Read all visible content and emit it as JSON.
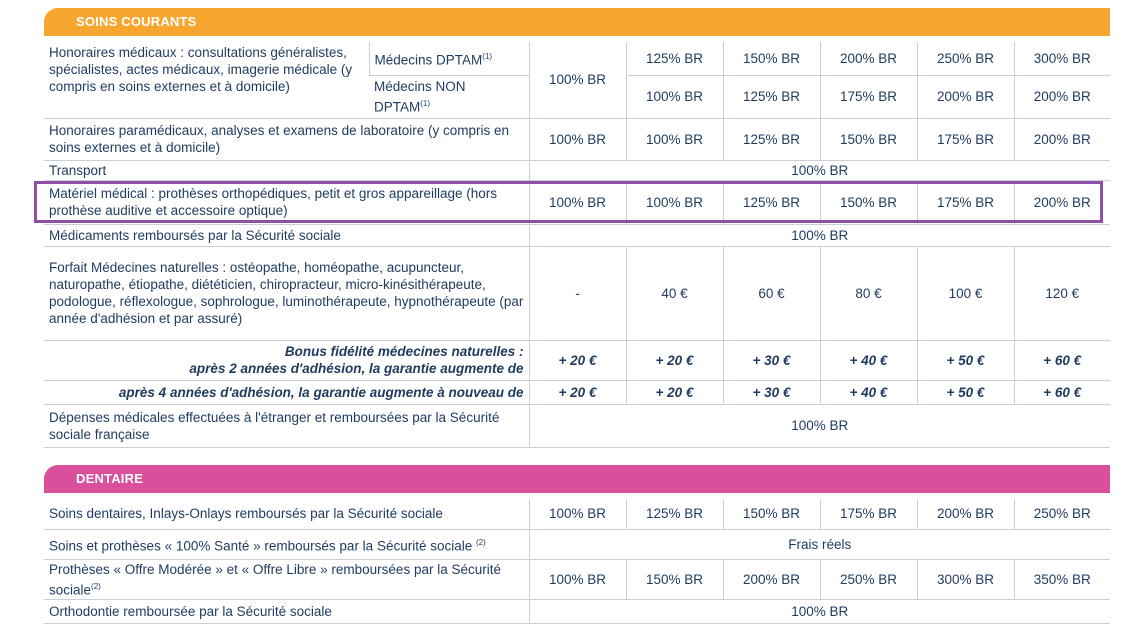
{
  "section1": {
    "title": "SOINS COURANTS",
    "rows": {
      "honoraires_medicaux": {
        "label": "Honoraires médicaux : consultations généralistes, spécialistes, actes médicaux, imagerie médicale (y compris en soins externes et à domicile)",
        "shared": "100% BR",
        "dptam": {
          "label": "Médecins DPTAM",
          "sup": "(1)",
          "values": [
            "125% BR",
            "150% BR",
            "200% BR",
            "250% BR",
            "300% BR"
          ]
        },
        "non_dptam": {
          "label": "Médecins NON DPTAM",
          "sup": "(1)",
          "values": [
            "100% BR",
            "125% BR",
            "175% BR",
            "200% BR",
            "200% BR"
          ]
        }
      },
      "paramedicaux": {
        "label": "Honoraires paramédicaux, analyses et examens de laboratoire (y compris en soins externes et à domicile)",
        "values": [
          "100% BR",
          "100% BR",
          "125% BR",
          "150% BR",
          "175% BR",
          "200% BR"
        ]
      },
      "transport": {
        "label": "Transport",
        "value": "100% BR"
      },
      "materiel": {
        "label": "Matériel médical : prothèses orthopédiques, petit et gros appareillage (hors prothèse auditive et accessoire optique)",
        "values": [
          "100% BR",
          "100% BR",
          "125% BR",
          "150% BR",
          "175% BR",
          "200% BR"
        ]
      },
      "medicaments": {
        "label": "Médicaments remboursés par la Sécurité sociale",
        "value": "100% BR"
      },
      "forfait": {
        "label": "Forfait Médecines naturelles : ostéopathe, homéopathe, acupuncteur, naturopathe, étiopathe, diététicien, chiropracteur, micro-kinésithérapeute, podologue, réflexologue, sophrologue, luminothérapeute, hypnothérapeute (par année d'adhésion et par assuré)",
        "values": [
          "-",
          "40 €",
          "60 €",
          "80 €",
          "100 €",
          "120 €"
        ]
      },
      "bonus2": {
        "label_line1": "Bonus fidélité médecines naturelles :",
        "label_line2": "après 2 années d'adhésion, la garantie augmente de",
        "values": [
          "+ 20 €",
          "+ 20 €",
          "+ 30 €",
          "+ 40 €",
          "+ 50 €",
          "+ 60 €"
        ]
      },
      "bonus4": {
        "label": "après 4 années d'adhésion, la garantie augmente à nouveau de",
        "values": [
          "+ 20 €",
          "+ 20 €",
          "+ 30 €",
          "+ 40 €",
          "+ 50 €",
          "+ 60 €"
        ]
      },
      "etranger": {
        "label": "Dépenses médicales effectuées à l'étranger et remboursées par la Sécurité sociale française",
        "value": "100% BR"
      }
    }
  },
  "section2": {
    "title": "DENTAIRE",
    "rows": {
      "soins_dentaires": {
        "label": "Soins dentaires, Inlays-Onlays remboursés par la Sécurité sociale",
        "values": [
          "100% BR",
          "125% BR",
          "150% BR",
          "175% BR",
          "200% BR",
          "250% BR"
        ]
      },
      "sante100": {
        "label": "Soins et prothèses « 100% Santé » remboursés par la Sécurité sociale",
        "sup": "(2)",
        "value": "Frais réels"
      },
      "protheses": {
        "label": "Prothèses « Offre Modérée » et « Offre Libre » remboursées par la Sécurité sociale",
        "sup": "(2)",
        "values": [
          "100% BR",
          "150% BR",
          "200% BR",
          "250% BR",
          "300% BR",
          "350% BR"
        ]
      },
      "orthodontie": {
        "label": "Orthodontie remboursée par la Sécurité sociale",
        "value": "100% BR"
      }
    }
  },
  "colors": {
    "orange": "#f6a52e",
    "pink": "#d94f9b",
    "highlight": "#8e4fa6",
    "text": "#1f3a5f"
  }
}
